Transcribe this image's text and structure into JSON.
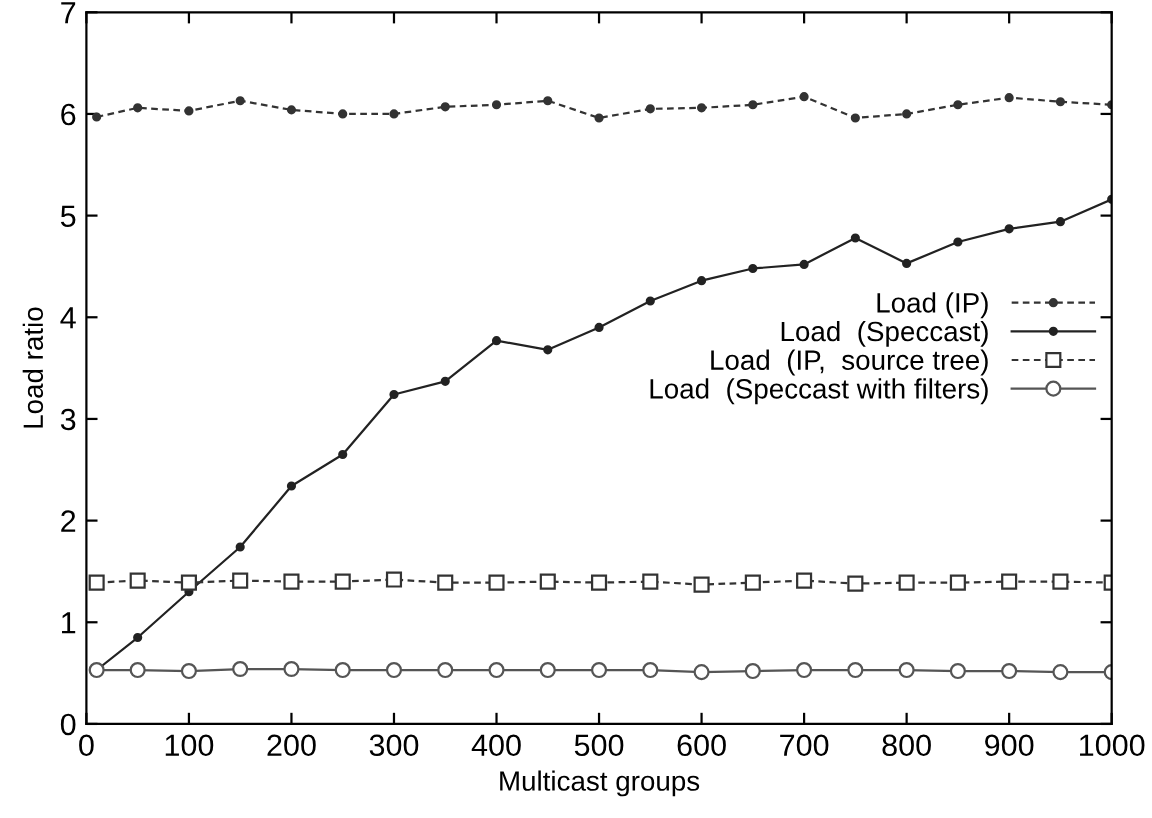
{
  "chart_data": {
    "type": "line",
    "xlabel": "Multicast groups",
    "ylabel": "Load ratio",
    "x": [
      10,
      50,
      100,
      150,
      200,
      250,
      300,
      350,
      400,
      450,
      500,
      550,
      600,
      650,
      700,
      750,
      800,
      850,
      900,
      950,
      1000
    ],
    "series": [
      {
        "name": "Load (IP)",
        "color": "#333333",
        "marker": "circle",
        "line_style": "dashed",
        "values": [
          5.97,
          6.06,
          6.03,
          6.13,
          6.04,
          6.0,
          6.0,
          6.07,
          6.09,
          6.13,
          5.96,
          6.05,
          6.06,
          6.09,
          6.17,
          5.96,
          6.0,
          6.09,
          6.16,
          6.12,
          6.09
        ]
      },
      {
        "name": "Load  (Speccast)",
        "color": "#222222",
        "marker": "circle",
        "line_style": "solid",
        "values": [
          0.53,
          0.85,
          1.3,
          1.74,
          2.34,
          2.65,
          3.24,
          3.37,
          3.77,
          3.68,
          3.9,
          4.16,
          4.36,
          4.48,
          4.52,
          4.78,
          4.53,
          4.74,
          4.87,
          4.94,
          5.16
        ]
      },
      {
        "name": "Load  (IP,  source tree)",
        "color": "#333333",
        "marker": "square",
        "line_style": "dashed",
        "values": [
          1.39,
          1.41,
          1.39,
          1.41,
          1.4,
          1.4,
          1.42,
          1.39,
          1.39,
          1.4,
          1.39,
          1.4,
          1.37,
          1.39,
          1.41,
          1.38,
          1.39,
          1.39,
          1.4,
          1.4,
          1.39
        ]
      },
      {
        "name": "Load  (Speccast with filters)",
        "color": "#555555",
        "marker": "circle_open",
        "line_style": "solid",
        "values": [
          0.53,
          0.53,
          0.52,
          0.54,
          0.54,
          0.53,
          0.53,
          0.53,
          0.53,
          0.53,
          0.53,
          0.53,
          0.51,
          0.52,
          0.53,
          0.53,
          0.53,
          0.52,
          0.52,
          0.51,
          0.51
        ]
      }
    ],
    "xlim": [
      0,
      1000
    ],
    "xticks": [
      0,
      100,
      200,
      300,
      400,
      500,
      600,
      700,
      800,
      900,
      1000
    ],
    "ylim": [
      0,
      7
    ],
    "yticks": [
      0,
      1,
      2,
      3,
      4,
      5,
      6,
      7
    ],
    "grid": false,
    "legend": "top right"
  }
}
